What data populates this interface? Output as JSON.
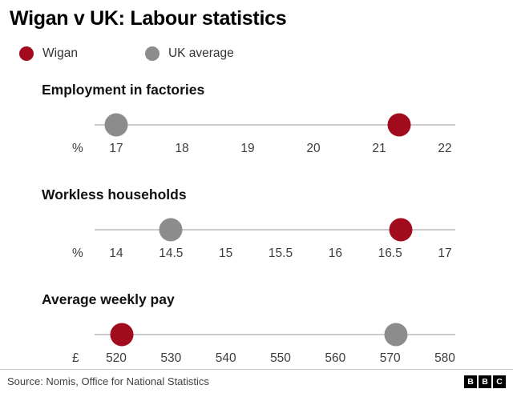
{
  "title": "Wigan v UK: Labour statistics",
  "legend": [
    {
      "label": "Wigan",
      "color": "#a20b1e"
    },
    {
      "label": "UK average",
      "color": "#8c8c8c"
    }
  ],
  "chart_data": [
    {
      "type": "scatter",
      "title": "Employment in factories",
      "unit": "%",
      "xlim": [
        17,
        22
      ],
      "ticks": [
        "17",
        "18",
        "19",
        "20",
        "21",
        "22"
      ],
      "grid": false,
      "series": [
        {
          "name": "UK average",
          "value": 17
        },
        {
          "name": "Wigan",
          "value": 21.3
        }
      ]
    },
    {
      "type": "scatter",
      "title": "Workless households",
      "unit": "%",
      "xlim": [
        14,
        17
      ],
      "ticks": [
        "14",
        "14.5",
        "15",
        "15.5",
        "16",
        "16.5",
        "17"
      ],
      "grid": false,
      "series": [
        {
          "name": "UK average",
          "value": 14.5
        },
        {
          "name": "Wigan",
          "value": 16.6
        }
      ]
    },
    {
      "type": "scatter",
      "title": "Average weekly pay",
      "unit": "£",
      "xlim": [
        520,
        580
      ],
      "ticks": [
        "520",
        "530",
        "540",
        "550",
        "560",
        "570",
        "580"
      ],
      "grid": false,
      "series": [
        {
          "name": "Wigan",
          "value": 521
        },
        {
          "name": "UK average",
          "value": 571
        }
      ]
    }
  ],
  "source": "Source: Nomis, Office for National Statistics",
  "logo": [
    "B",
    "B",
    "C"
  ]
}
